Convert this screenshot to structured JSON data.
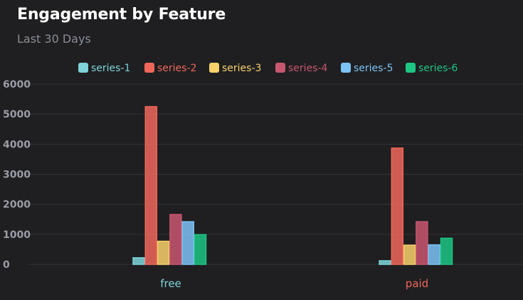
{
  "chart_data": {
    "type": "bar",
    "title": "Engagement by Feature",
    "subtitle": "Last 30 Days",
    "categories": [
      "free",
      "paid"
    ],
    "category_colors": [
      "#7dd3d8",
      "#f0665a"
    ],
    "ylim": [
      0,
      6000
    ],
    "yticks": [
      0,
      1000,
      2000,
      3000,
      4000,
      5000,
      6000
    ],
    "grid": true,
    "legend_position": "top-center",
    "series": [
      {
        "name": "series-1",
        "color": "#7dd3d8",
        "values": [
          220,
          120
        ]
      },
      {
        "name": "series-2",
        "color": "#f0665a",
        "values": [
          5250,
          3870
        ]
      },
      {
        "name": "series-3",
        "color": "#f8d16a",
        "values": [
          770,
          640
        ]
      },
      {
        "name": "series-4",
        "color": "#c8566f",
        "values": [
          1660,
          1420
        ]
      },
      {
        "name": "series-5",
        "color": "#7cc3f5",
        "values": [
          1420,
          650
        ]
      },
      {
        "name": "series-6",
        "color": "#1dc683",
        "values": [
          990,
          870
        ]
      }
    ]
  }
}
